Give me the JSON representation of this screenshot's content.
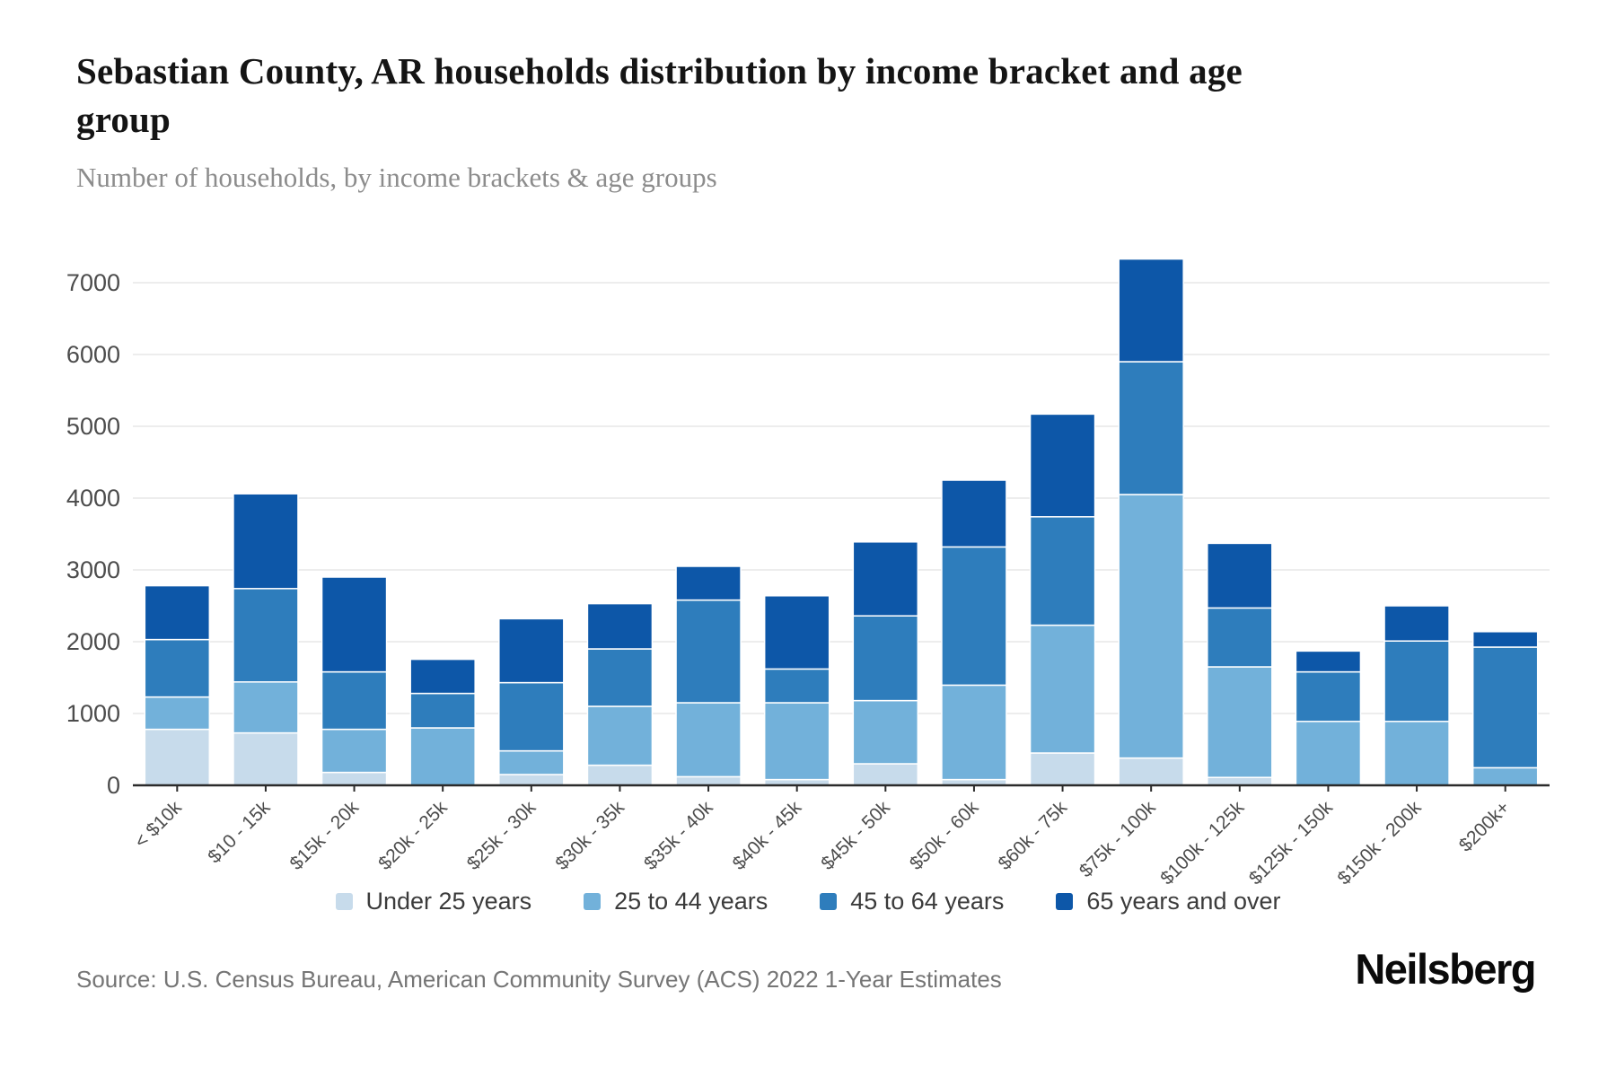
{
  "header": {
    "title": "Sebastian County, AR households distribution by income bracket and age group",
    "subtitle": "Number of households, by income brackets & age groups"
  },
  "chart_data": {
    "type": "bar",
    "stacked": true,
    "categories": [
      "< $10k",
      "$10 - 15k",
      "$15k - 20k",
      "$20k - 25k",
      "$25k - 30k",
      "$30k - 35k",
      "$35k - 40k",
      "$40k - 45k",
      "$45k - 50k",
      "$50k - 60k",
      "$60k - 75k",
      "$75k - 100k",
      "$100k - 125k",
      "$125k - 150k",
      "$150k - 200k",
      "$200k+"
    ],
    "series": [
      {
        "name": "Under 25 years",
        "color": "#c7dbeb",
        "values": [
          780,
          730,
          180,
          0,
          150,
          280,
          120,
          80,
          300,
          80,
          450,
          380,
          110,
          0,
          0,
          0
        ]
      },
      {
        "name": "25 to 44 years",
        "color": "#72b1da",
        "values": [
          450,
          710,
          600,
          800,
          330,
          820,
          1030,
          1070,
          880,
          1315,
          1780,
          3670,
          1540,
          890,
          890,
          245
        ]
      },
      {
        "name": "45 to 64 years",
        "color": "#2e7dbc",
        "values": [
          800,
          1300,
          800,
          480,
          950,
          800,
          1430,
          470,
          1180,
          1925,
          1510,
          1850,
          820,
          690,
          1120,
          1680
        ]
      },
      {
        "name": "65 years and over",
        "color": "#0d57a8",
        "values": [
          750,
          1320,
          1320,
          475,
          890,
          630,
          470,
          1020,
          1030,
          930,
          1430,
          1430,
          900,
          290,
          490,
          215
        ]
      }
    ],
    "totals": [
      2780,
      4060,
      2900,
      1755,
      2320,
      2530,
      3050,
      2640,
      3390,
      4250,
      5170,
      7330,
      3370,
      1870,
      2500,
      2140
    ],
    "yticks": [
      0,
      1000,
      2000,
      3000,
      4000,
      5000,
      6000,
      7000
    ],
    "ylim": [
      0,
      7500
    ],
    "grid": true,
    "legend_position": "bottom",
    "axis_color": "#2b2b2b",
    "grid_color": "#ededed",
    "tick_label_color": "#4c4c4c"
  },
  "footer": {
    "source": "Source: U.S. Census Bureau, American Community Survey (ACS) 2022 1-Year Estimates",
    "logo": "Neilsberg"
  }
}
